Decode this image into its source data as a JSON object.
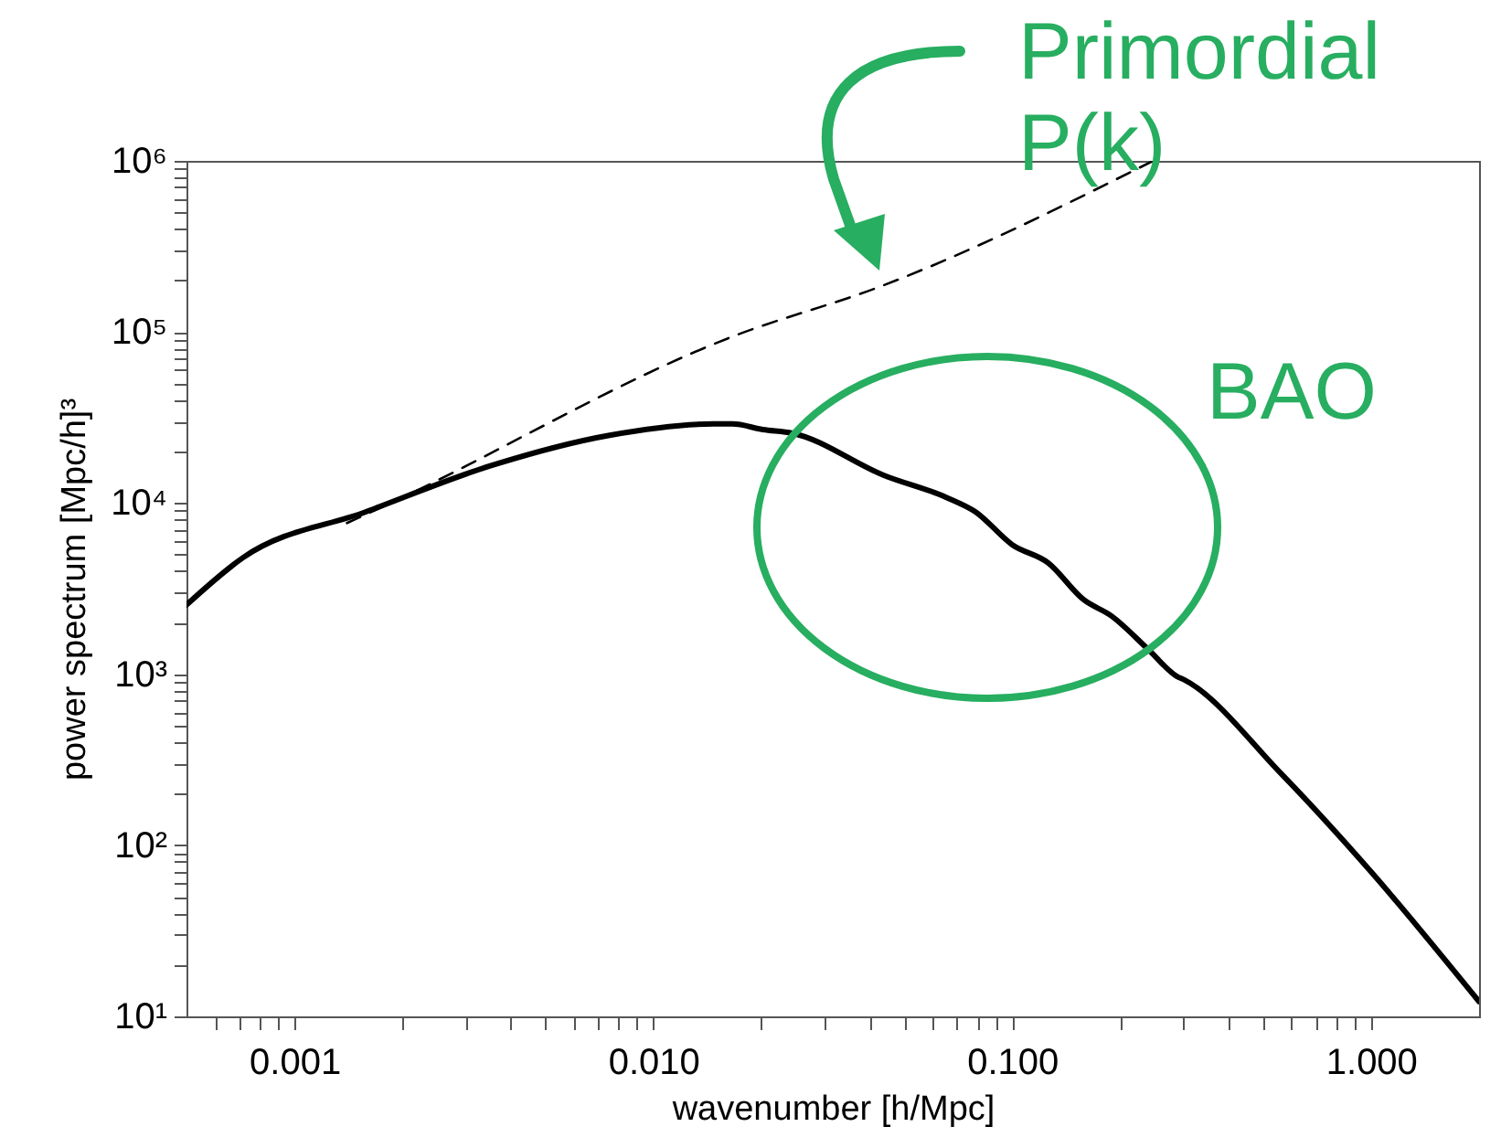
{
  "chart_data": {
    "type": "line",
    "xlabel": "wavenumber [h/Mpc]",
    "ylabel": "power spectrum [Mpc/h]³",
    "log": "xy",
    "grid": false,
    "marker": "none",
    "xlim": [
      0.0005,
      2
    ],
    "ylim": [
      10,
      1000000
    ],
    "xticks": [
      {
        "value": 0.0006,
        "label": null
      },
      {
        "value": 0.0007,
        "label": null
      },
      {
        "value": 0.0008,
        "label": null
      },
      {
        "value": 0.0009,
        "label": null
      },
      0.001,
      {
        "value": 0.002,
        "label": null
      },
      {
        "value": 0.003,
        "label": null
      },
      {
        "value": 0.004,
        "label": null
      },
      {
        "value": 0.005,
        "label": null
      },
      {
        "value": 0.006,
        "label": null
      },
      {
        "value": 0.007,
        "label": null
      },
      {
        "value": 0.008,
        "label": null
      },
      {
        "value": 0.009,
        "label": null
      },
      {
        "value": 0.01,
        "label": "0.010"
      },
      {
        "value": 0.02,
        "label": null
      },
      {
        "value": 0.03,
        "label": null
      },
      {
        "value": 0.04,
        "label": null
      },
      {
        "value": 0.05,
        "label": null
      },
      {
        "value": 0.06,
        "label": null
      },
      {
        "value": 0.07,
        "label": null
      },
      {
        "value": 0.08,
        "label": null
      },
      {
        "value": 0.09,
        "label": null
      },
      {
        "value": 0.1,
        "label": "0.100"
      },
      {
        "value": 0.2,
        "label": null
      },
      {
        "value": 0.3,
        "label": null
      },
      {
        "value": 0.4,
        "label": null
      },
      {
        "value": 0.5,
        "label": null
      },
      {
        "value": 0.6,
        "label": null
      },
      {
        "value": 0.7,
        "label": null
      },
      {
        "value": 0.8,
        "label": null
      },
      {
        "value": 0.9,
        "label": null
      },
      {
        "value": 1,
        "label": "1.000"
      }
    ],
    "yticks": [
      {
        "value": 10,
        "label": "10¹"
      },
      {
        "value": 20,
        "label": null
      },
      {
        "value": 30,
        "label": null
      },
      {
        "value": 40,
        "label": null
      },
      {
        "value": 50,
        "label": null
      },
      {
        "value": 60,
        "label": null
      },
      {
        "value": 70,
        "label": null
      },
      {
        "value": 80,
        "label": null
      },
      {
        "value": 90,
        "label": null
      },
      {
        "value": 100,
        "label": "10²"
      },
      {
        "value": 200,
        "label": null
      },
      {
        "value": 300,
        "label": null
      },
      {
        "value": 400,
        "label": null
      },
      {
        "value": 500,
        "label": null
      },
      {
        "value": 600,
        "label": null
      },
      {
        "value": 700,
        "label": null
      },
      {
        "value": 800,
        "label": null
      },
      {
        "value": 900,
        "label": null
      },
      {
        "value": 1000,
        "label": "10³"
      },
      {
        "value": 2000,
        "label": null
      },
      {
        "value": 3000,
        "label": null
      },
      {
        "value": 4000,
        "label": null
      },
      {
        "value": 5000,
        "label": null
      },
      {
        "value": 6000,
        "label": null
      },
      {
        "value": 7000,
        "label": null
      },
      {
        "value": 8000,
        "label": null
      },
      {
        "value": 9000,
        "label": null
      },
      {
        "value": 10000,
        "label": "10⁴"
      },
      {
        "value": 20000,
        "label": null
      },
      {
        "value": 30000,
        "label": null
      },
      {
        "value": 40000,
        "label": null
      },
      {
        "value": 50000,
        "label": null
      },
      {
        "value": 60000,
        "label": null
      },
      {
        "value": 70000,
        "label": null
      },
      {
        "value": 80000,
        "label": null
      },
      {
        "value": 90000,
        "label": null
      },
      {
        "value": 100000,
        "label": "10⁵"
      },
      {
        "value": 200000,
        "label": null
      },
      {
        "value": 300000,
        "label": null
      },
      {
        "value": 400000,
        "label": null
      },
      {
        "value": 500000,
        "label": null
      },
      {
        "value": 600000,
        "label": null
      },
      {
        "value": 700000,
        "label": null
      },
      {
        "value": 800000,
        "label": null
      },
      {
        "value": 900000,
        "label": null
      },
      {
        "value": 1000000,
        "label": "10⁶"
      }
    ],
    "series": [
      {
        "color": "#000000",
        "line_style": "solid",
        "x": [
          0.0005,
          0.00072,
          0.00158,
          0.00348,
          0.00755,
          0.0147,
          0.0166,
          0.0202,
          0.0244,
          0.044,
          0.0655,
          0.079,
          0.1,
          0.126,
          0.158,
          0.189,
          0.239,
          0.288,
          0.302,
          0.56,
          1.0,
          2.0
        ],
        "values": [
          2540,
          4810,
          8890,
          16400,
          24900,
          29000,
          29000,
          26900,
          25600,
          14500,
          10800,
          8890,
          5710,
          4470,
          2730,
          2190,
          1400,
          970,
          925,
          264,
          70,
          12.2
        ]
      },
      {
        "color": "#000000",
        "line_style": "dashed",
        "x": [
          0.0014,
          0.00172,
          0.0172,
          0.0425,
          0.247
        ],
        "values": [
          7640,
          9300,
          96600,
          183000,
          1000000
        ]
      }
    ],
    "annotations": [
      "Primordial P(k)",
      "BAO"
    ]
  }
}
